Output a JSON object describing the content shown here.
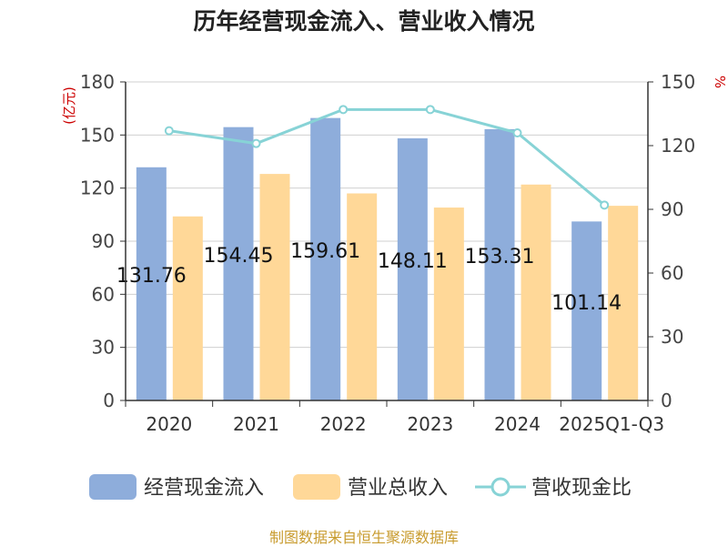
{
  "title": "历年经营现金流入、营业收入情况",
  "source": "制图数据来自恒生聚源数据库",
  "colors": {
    "cash_inflow": "#8eaddb",
    "revenue": "#ffd898",
    "ratio": "#87d3d6",
    "axis_unit": "#cc0000",
    "source": "#c89b2e"
  },
  "chart_data": {
    "type": "bar",
    "categories": [
      "2020",
      "2021",
      "2022",
      "2023",
      "2024",
      "2025Q1-Q3"
    ],
    "y_left": {
      "unit": "(亿元)",
      "ticks": [
        0,
        30,
        60,
        90,
        120,
        150,
        180
      ],
      "range": [
        0,
        180
      ]
    },
    "y_right": {
      "unit": "%",
      "ticks": [
        0,
        30,
        60,
        90,
        120,
        150
      ],
      "range": [
        0,
        150
      ]
    },
    "series": [
      {
        "name": "经营现金流入",
        "type": "bar",
        "axis": "left",
        "values": [
          131.76,
          154.45,
          159.61,
          148.11,
          153.31,
          101.14
        ],
        "labels": [
          "131.76",
          "154.45",
          "159.61",
          "148.11",
          "153.31",
          "101.14"
        ]
      },
      {
        "name": "营业总收入",
        "type": "bar",
        "axis": "left",
        "values": [
          104,
          128,
          117,
          109,
          122,
          110
        ]
      },
      {
        "name": "营收现金比",
        "type": "line",
        "axis": "right",
        "values": [
          127,
          121,
          137,
          137,
          126,
          92
        ]
      }
    ],
    "legend": [
      "经营现金流入",
      "营业总收入",
      "营收现金比"
    ],
    "legend_position": "bottom",
    "grid": true
  }
}
